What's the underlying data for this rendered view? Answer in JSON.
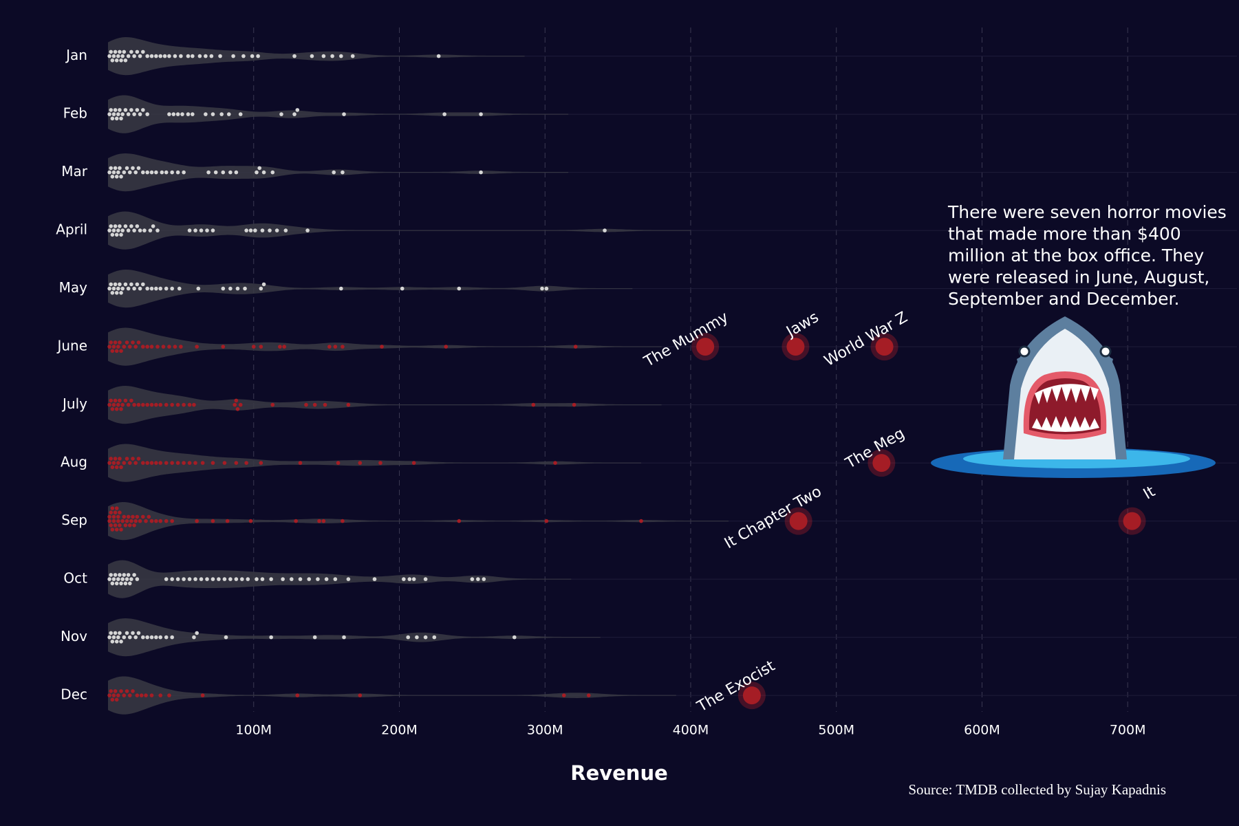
{
  "chart_data": {
    "type": "beeswarm",
    "x_label": "Revenue",
    "source": "Source: TMDB collected by Sujay Kapadnis",
    "categories": [
      "Jan",
      "Feb",
      "Mar",
      "April",
      "May",
      "June",
      "July",
      "Aug",
      "Sep",
      "Oct",
      "Nov",
      "Dec"
    ],
    "colors": [
      "#d6d6d6",
      "#d6d6d6",
      "#d6d6d6",
      "#d6d6d6",
      "#d6d6d6",
      "#a51d25",
      "#a51d25",
      "#a51d25",
      "#a51d25",
      "#d6d6d6",
      "#d6d6d6",
      "#a51d25"
    ],
    "values": [
      [
        1,
        2,
        3,
        4,
        5,
        6,
        7,
        8,
        9,
        10,
        11,
        12,
        14,
        16,
        18,
        20,
        22,
        24,
        27,
        30,
        33,
        36,
        39,
        42,
        46,
        50,
        55,
        58,
        63,
        67,
        71,
        77,
        86,
        93,
        99,
        103,
        128,
        140,
        148,
        154,
        160,
        168,
        227
      ],
      [
        1,
        2,
        3,
        4,
        5,
        6,
        7,
        8,
        9,
        10,
        12,
        14,
        16,
        18,
        20,
        22,
        24,
        27,
        42,
        45,
        48,
        51,
        55,
        58,
        67,
        72,
        78,
        83,
        91,
        119,
        128,
        130,
        162,
        231,
        256
      ],
      [
        1,
        2,
        3,
        4,
        5,
        6,
        7,
        8,
        9,
        11,
        13,
        15,
        17,
        19,
        21,
        24,
        27,
        30,
        33,
        37,
        40,
        44,
        48,
        52,
        69,
        74,
        79,
        84,
        88,
        102,
        104,
        107,
        113,
        155,
        161,
        256
      ],
      [
        1,
        2,
        3,
        4,
        5,
        6,
        7,
        8,
        9,
        10,
        12,
        14,
        16,
        18,
        20,
        22,
        25,
        29,
        31,
        34,
        56,
        60,
        64,
        68,
        72,
        95,
        98,
        101,
        106,
        111,
        116,
        122,
        137,
        341
      ],
      [
        1,
        2,
        3,
        4,
        5,
        6,
        7,
        8,
        9,
        10,
        12,
        14,
        16,
        18,
        20,
        22,
        24,
        27,
        30,
        33,
        36,
        40,
        44,
        49,
        62,
        79,
        84,
        89,
        94,
        105,
        107,
        160,
        202,
        241,
        298,
        301
      ],
      [
        1,
        2,
        3,
        4,
        5,
        6,
        7,
        8,
        9,
        11,
        13,
        15,
        17,
        19,
        21,
        24,
        27,
        30,
        34,
        38,
        42,
        46,
        50,
        61,
        79,
        100,
        105,
        118,
        121,
        152,
        156,
        161,
        188,
        232,
        321
      ],
      [
        1,
        2,
        3,
        4,
        5,
        6,
        7,
        8,
        9,
        10,
        12,
        14,
        16,
        18,
        21,
        24,
        27,
        30,
        33,
        36,
        40,
        44,
        48,
        52,
        56,
        59,
        87,
        88,
        89,
        91,
        113,
        136,
        142,
        149,
        165,
        292,
        320
      ],
      [
        1,
        2,
        3,
        4,
        5,
        6,
        7,
        8,
        9,
        11,
        13,
        15,
        17,
        19,
        21,
        24,
        27,
        30,
        33,
        36,
        40,
        44,
        48,
        52,
        56,
        60,
        65,
        72,
        80,
        88,
        95,
        105,
        132,
        158,
        173,
        187,
        210,
        307
      ],
      [
        1,
        1,
        2,
        2,
        3,
        3,
        4,
        4,
        5,
        5,
        6,
        6,
        7,
        7,
        8,
        8,
        9,
        10,
        11,
        12,
        13,
        14,
        15,
        16,
        17,
        18,
        19,
        20,
        22,
        24,
        26,
        28,
        30,
        33,
        36,
        40,
        44,
        61,
        72,
        82,
        98,
        129,
        145,
        148,
        161,
        241,
        301,
        366
      ],
      [
        1,
        2,
        3,
        4,
        5,
        6,
        7,
        8,
        9,
        10,
        11,
        12,
        13,
        14,
        15,
        16,
        18,
        20,
        40,
        44,
        48,
        52,
        56,
        60,
        64,
        68,
        72,
        76,
        80,
        84,
        88,
        92,
        96,
        102,
        106,
        112,
        120,
        126,
        132,
        138,
        144,
        150,
        156,
        165,
        183,
        203,
        207,
        210,
        218,
        250,
        254,
        258
      ],
      [
        1,
        2,
        3,
        4,
        5,
        6,
        7,
        8,
        9,
        11,
        13,
        15,
        17,
        19,
        21,
        24,
        27,
        30,
        33,
        36,
        40,
        44,
        59,
        61,
        81,
        112,
        142,
        162,
        206,
        212,
        218,
        224,
        279
      ],
      [
        1,
        2,
        3,
        4,
        5,
        6,
        7,
        9,
        11,
        13,
        15,
        17,
        20,
        23,
        26,
        30,
        36,
        42,
        65,
        130,
        173,
        313,
        330
      ]
    ],
    "annotations": [
      {
        "label": "The Mummy",
        "category": "June",
        "value": 410
      },
      {
        "label": "Jaws",
        "category": "June",
        "value": 472
      },
      {
        "label": "World War Z",
        "category": "June",
        "value": 533
      },
      {
        "label": "The Meg",
        "category": "Aug",
        "value": 531
      },
      {
        "label": "It Chapter Two",
        "category": "Sep",
        "value": 474
      },
      {
        "label": "It",
        "category": "Sep",
        "value": 703
      },
      {
        "label": "The Exocist",
        "category": "Dec",
        "value": 442
      }
    ],
    "annotation_text": [
      "There were seven horror movies",
      "that made more than $400",
      "million at the box office. They",
      "were released in June, August,",
      "September and December."
    ],
    "xlim": [
      0,
      775
    ],
    "xticks": [
      {
        "value": 100,
        "label": "100M"
      },
      {
        "value": 200,
        "label": "200M"
      },
      {
        "value": 300,
        "label": "300M"
      },
      {
        "value": 400,
        "label": "400M"
      },
      {
        "value": 500,
        "label": "500M"
      },
      {
        "value": 600,
        "label": "600M"
      },
      {
        "value": 700,
        "label": "700M"
      }
    ],
    "grid": true
  }
}
